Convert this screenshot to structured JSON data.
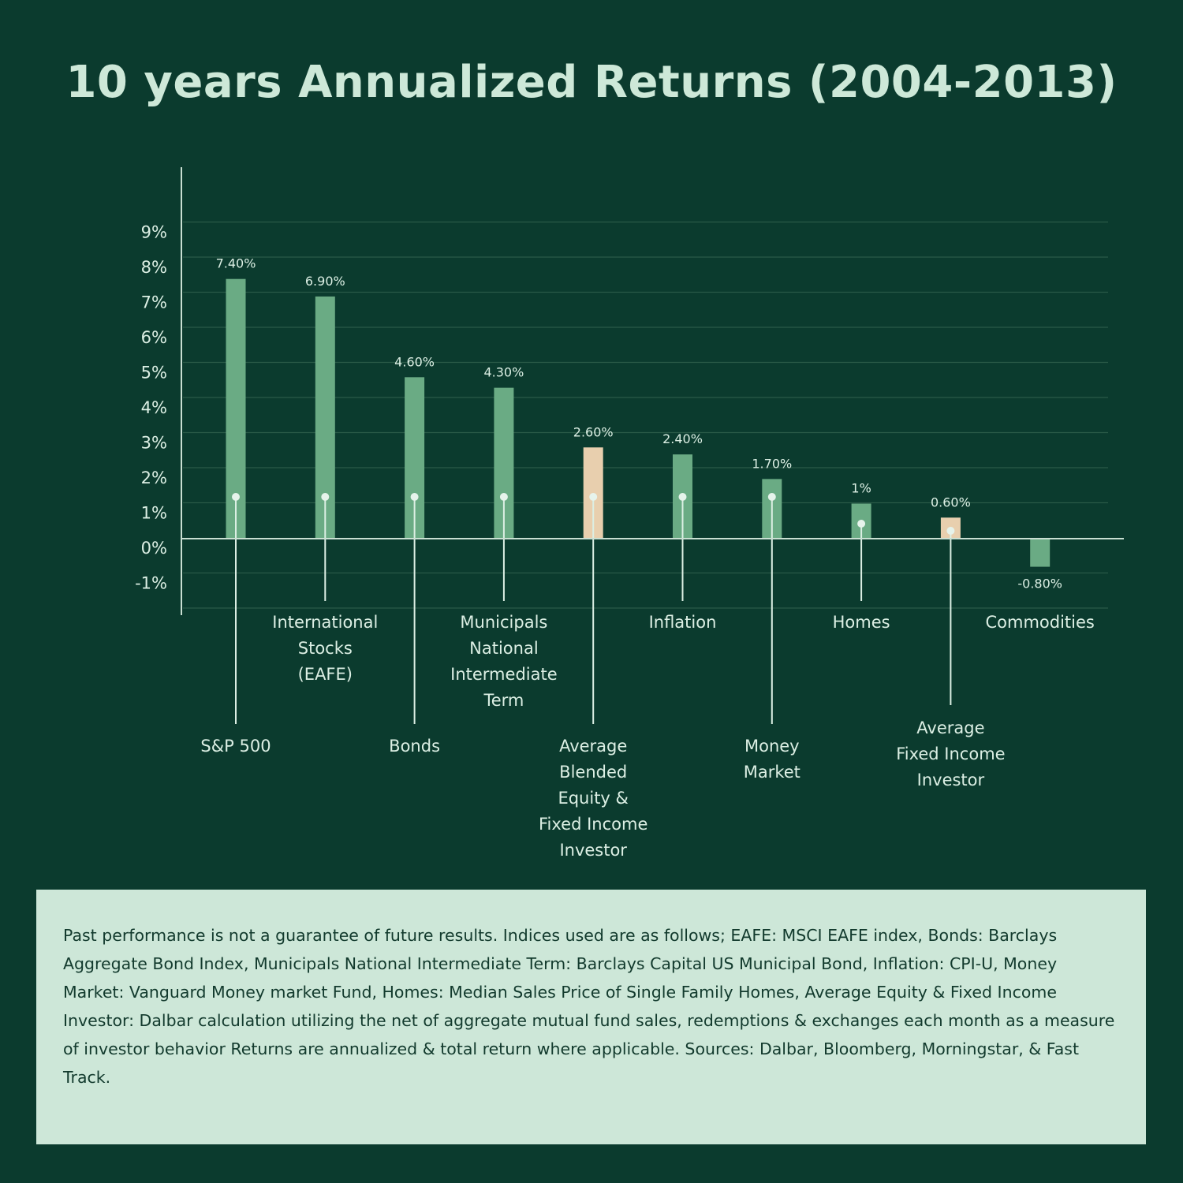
{
  "chart_data": {
    "type": "bar",
    "title": "10 years Annualized Returns (2004-2013)",
    "xlabel": "",
    "ylabel": "",
    "ylim": [
      -2,
      9
    ],
    "yticks": [
      "9%",
      "8%",
      "7%",
      "6%",
      "5%",
      "4%",
      "3%",
      "2%",
      "1%",
      "0%",
      "-1%"
    ],
    "ytick_values": [
      9,
      8,
      7,
      6,
      5,
      4,
      3,
      2,
      1,
      0,
      -1
    ],
    "grid": true,
    "colors": {
      "default": "#6aab84",
      "highlight": "#e8cfae"
    },
    "bars": [
      {
        "category": [
          "S&P 500"
        ],
        "value": 7.4,
        "label": "7.40%",
        "highlight": false,
        "label_tier": "lower"
      },
      {
        "category": [
          "International",
          "Stocks",
          "(EAFE)"
        ],
        "value": 6.9,
        "label": "6.90%",
        "highlight": false,
        "label_tier": "upper"
      },
      {
        "category": [
          "Bonds"
        ],
        "value": 4.6,
        "label": "4.60%",
        "highlight": false,
        "label_tier": "lower"
      },
      {
        "category": [
          "Municipals",
          "National",
          "Intermediate",
          "Term"
        ],
        "value": 4.3,
        "label": "4.30%",
        "highlight": false,
        "label_tier": "upper"
      },
      {
        "category": [
          "Average",
          "Blended",
          "Equity &",
          "Fixed Income",
          "Investor"
        ],
        "value": 2.6,
        "label": "2.60%",
        "highlight": true,
        "label_tier": "lower"
      },
      {
        "category": [
          "Inflation"
        ],
        "value": 2.4,
        "label": "2.40%",
        "highlight": false,
        "label_tier": "upper"
      },
      {
        "category": [
          "Money",
          "Market"
        ],
        "value": 1.7,
        "label": "1.70%",
        "highlight": false,
        "label_tier": "lower"
      },
      {
        "category": [
          "Homes"
        ],
        "value": 1.0,
        "label": "1%",
        "highlight": false,
        "label_tier": "upper"
      },
      {
        "category": [
          "Average",
          "Fixed Income",
          "Investor"
        ],
        "value": 0.6,
        "label": "0.60%",
        "highlight": true,
        "label_tier": "middle"
      },
      {
        "category": [
          "Commodities"
        ],
        "value": -0.8,
        "label": "-0.80%",
        "highlight": false,
        "label_tier": "none"
      }
    ]
  },
  "footnote": {
    "text": "Past performance is not a guarantee of future results. Indices used are as follows; EAFE: MSCI EAFE index, Bonds: Barclays Aggregate Bond Index, Municipals National Intermediate Term: Barclays Capital US Municipal Bond, Inflation: CPI-U, Money Market: Vanguard Money market Fund, Homes: Median Sales Price of Single Family Homes, Average Equity & Fixed Income Investor: Dalbar calculation utilizing the net of aggregate mutual fund sales, redemptions & exchanges each month as a measure of investor behavior Returns are annualized & total return where applicable. Sources: Dalbar, Bloomberg, Morningstar, & Fast Track."
  }
}
